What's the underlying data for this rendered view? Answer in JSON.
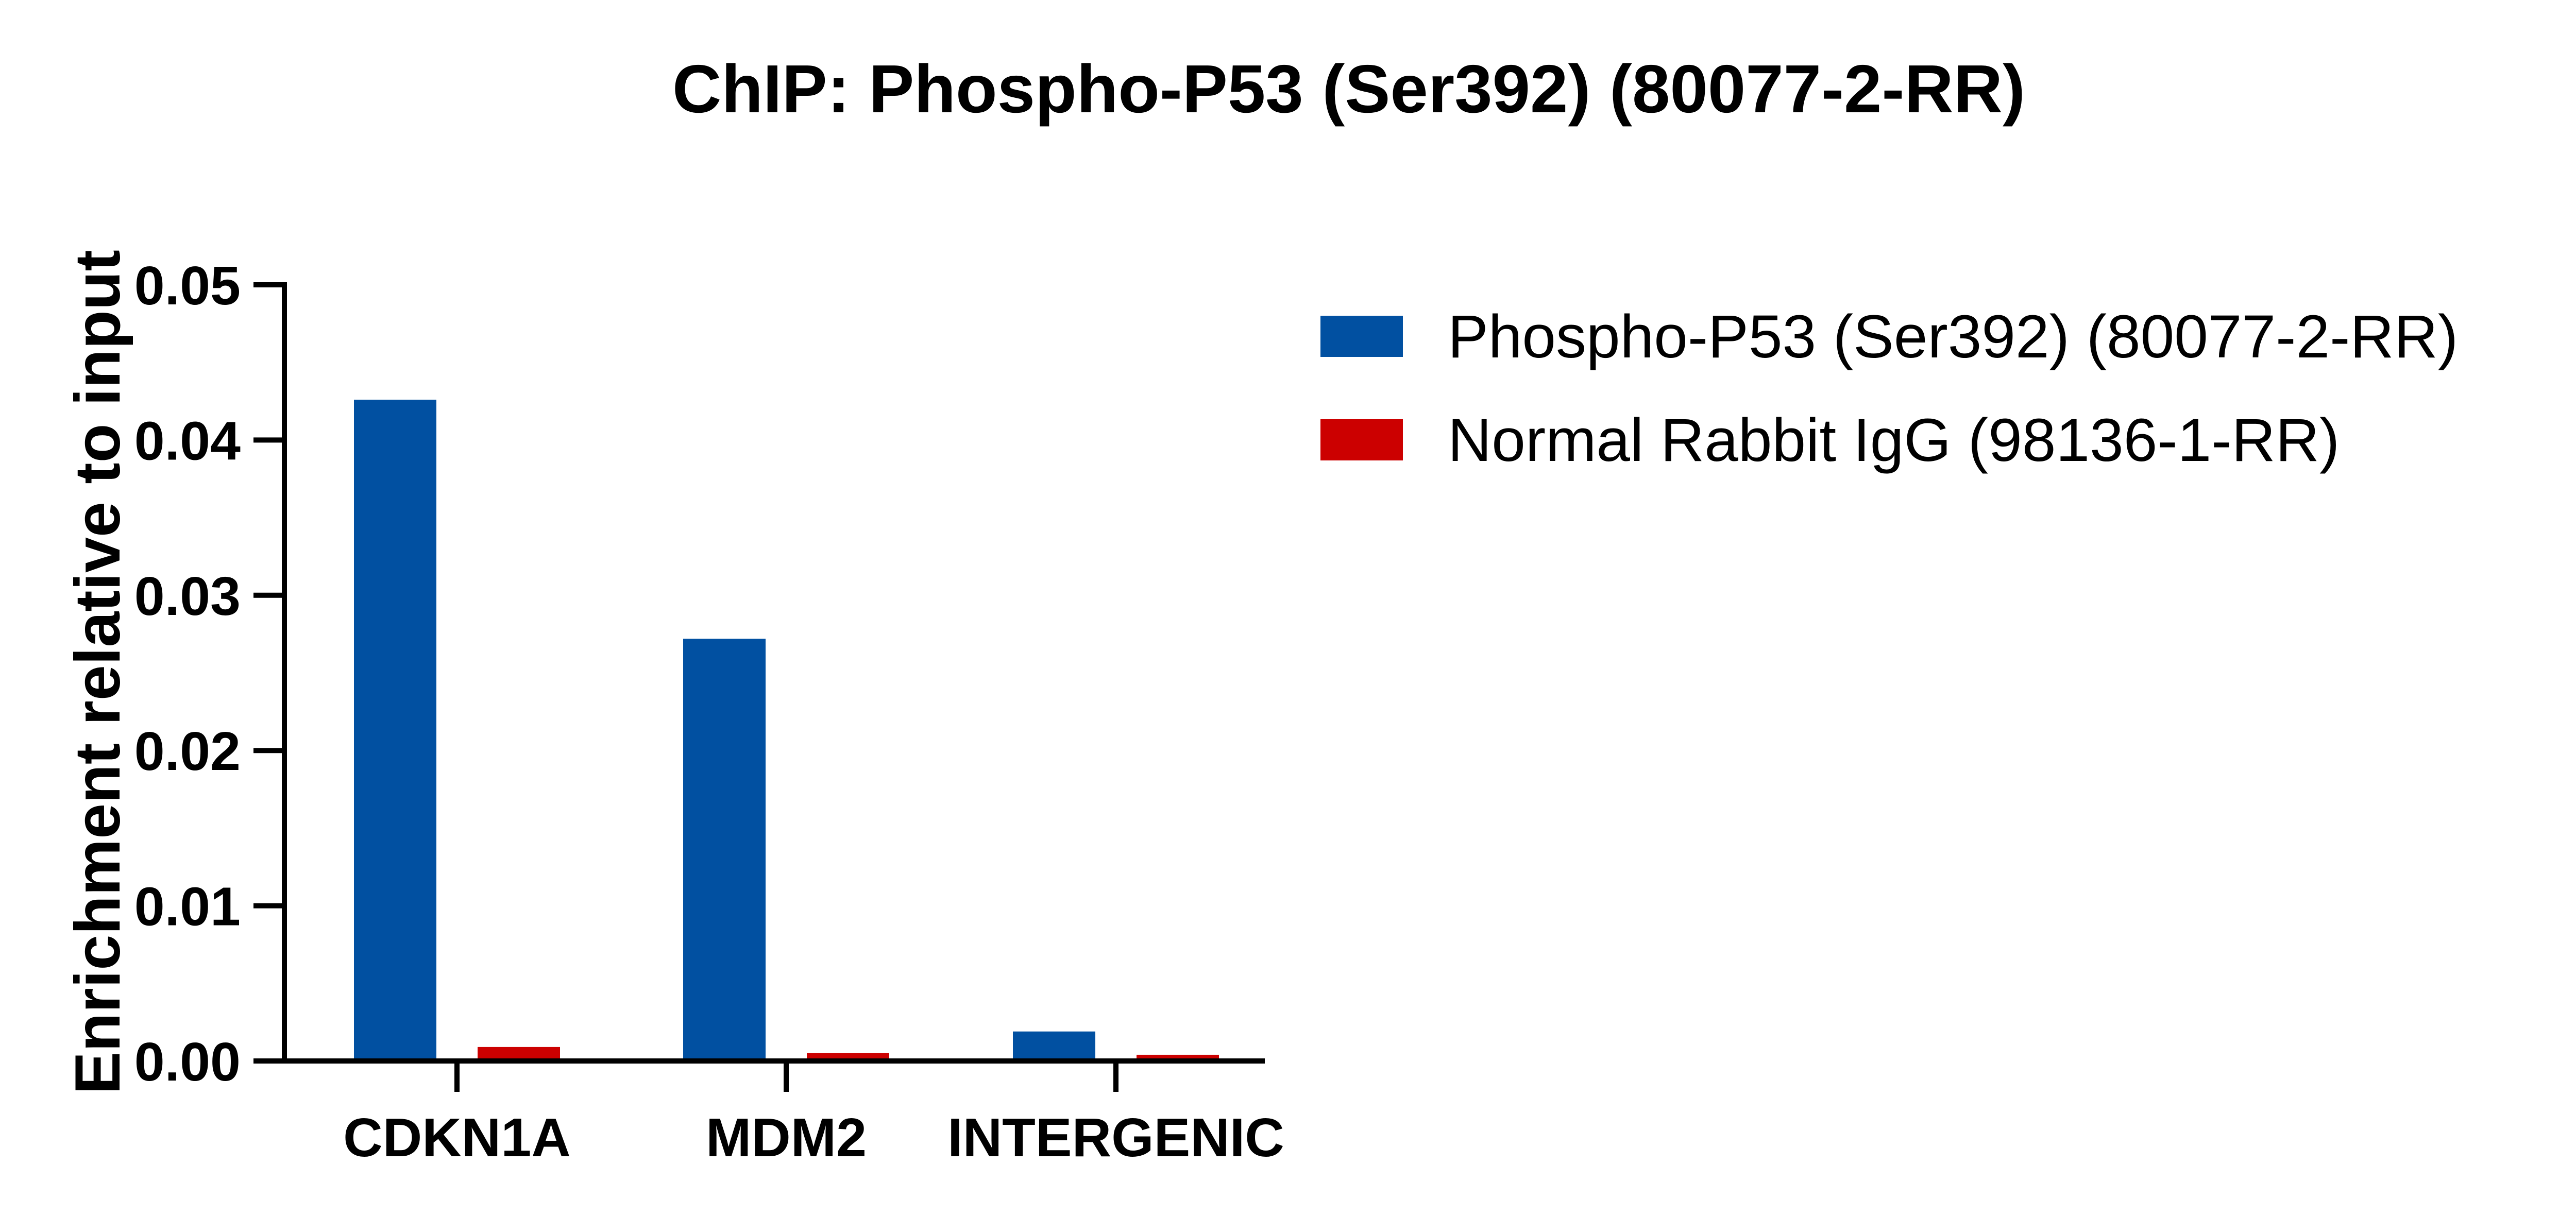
{
  "chart_data": {
    "type": "bar",
    "title": "ChIP: Phospho-P53 (Ser392) (80077-2-RR)",
    "xlabel": "",
    "ylabel": "Enrichment relative to input",
    "categories": [
      "CDKN1A",
      "MDM2",
      "INTERGENIC"
    ],
    "series": [
      {
        "name": "Phospho-P53 (Ser392) (80077-2-RR)",
        "color": "#0150a1",
        "values": [
          0.0426,
          0.0272,
          0.0019
        ]
      },
      {
        "name": "Normal Rabbit IgG (98136-1-RR)",
        "color": "#cc0000",
        "values": [
          0.0009,
          0.0005,
          0.0004
        ]
      }
    ],
    "ylim": [
      0,
      0.05
    ],
    "yticks": [
      "0.00",
      "0.01",
      "0.02",
      "0.03",
      "0.04",
      "0.05"
    ],
    "grid": false,
    "legend": "right"
  }
}
